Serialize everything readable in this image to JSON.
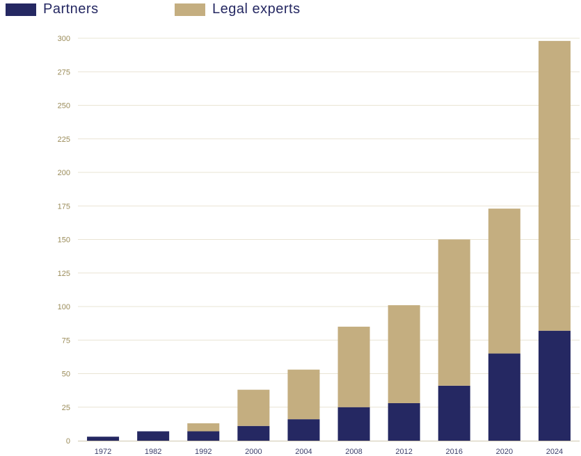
{
  "chart_data": {
    "type": "bar",
    "stacked": true,
    "categories": [
      "1972",
      "1982",
      "1992",
      "2000",
      "2004",
      "2008",
      "2012",
      "2016",
      "2020",
      "2024"
    ],
    "series": [
      {
        "name": "Partners",
        "color": "#252862",
        "values": [
          3,
          7,
          7,
          11,
          16,
          25,
          28,
          41,
          65,
          82
        ]
      },
      {
        "name": "Legal experts",
        "color": "#c4ae80",
        "values": [
          0,
          0,
          6,
          27,
          37,
          60,
          73,
          109,
          108,
          216
        ]
      }
    ],
    "yticks": [
      0,
      25,
      50,
      75,
      100,
      125,
      150,
      175,
      200,
      225,
      250,
      275,
      300
    ],
    "ylim": [
      0,
      300
    ],
    "grid": true,
    "legend_position": "top-left",
    "title": "",
    "xlabel": "",
    "ylabel": ""
  }
}
